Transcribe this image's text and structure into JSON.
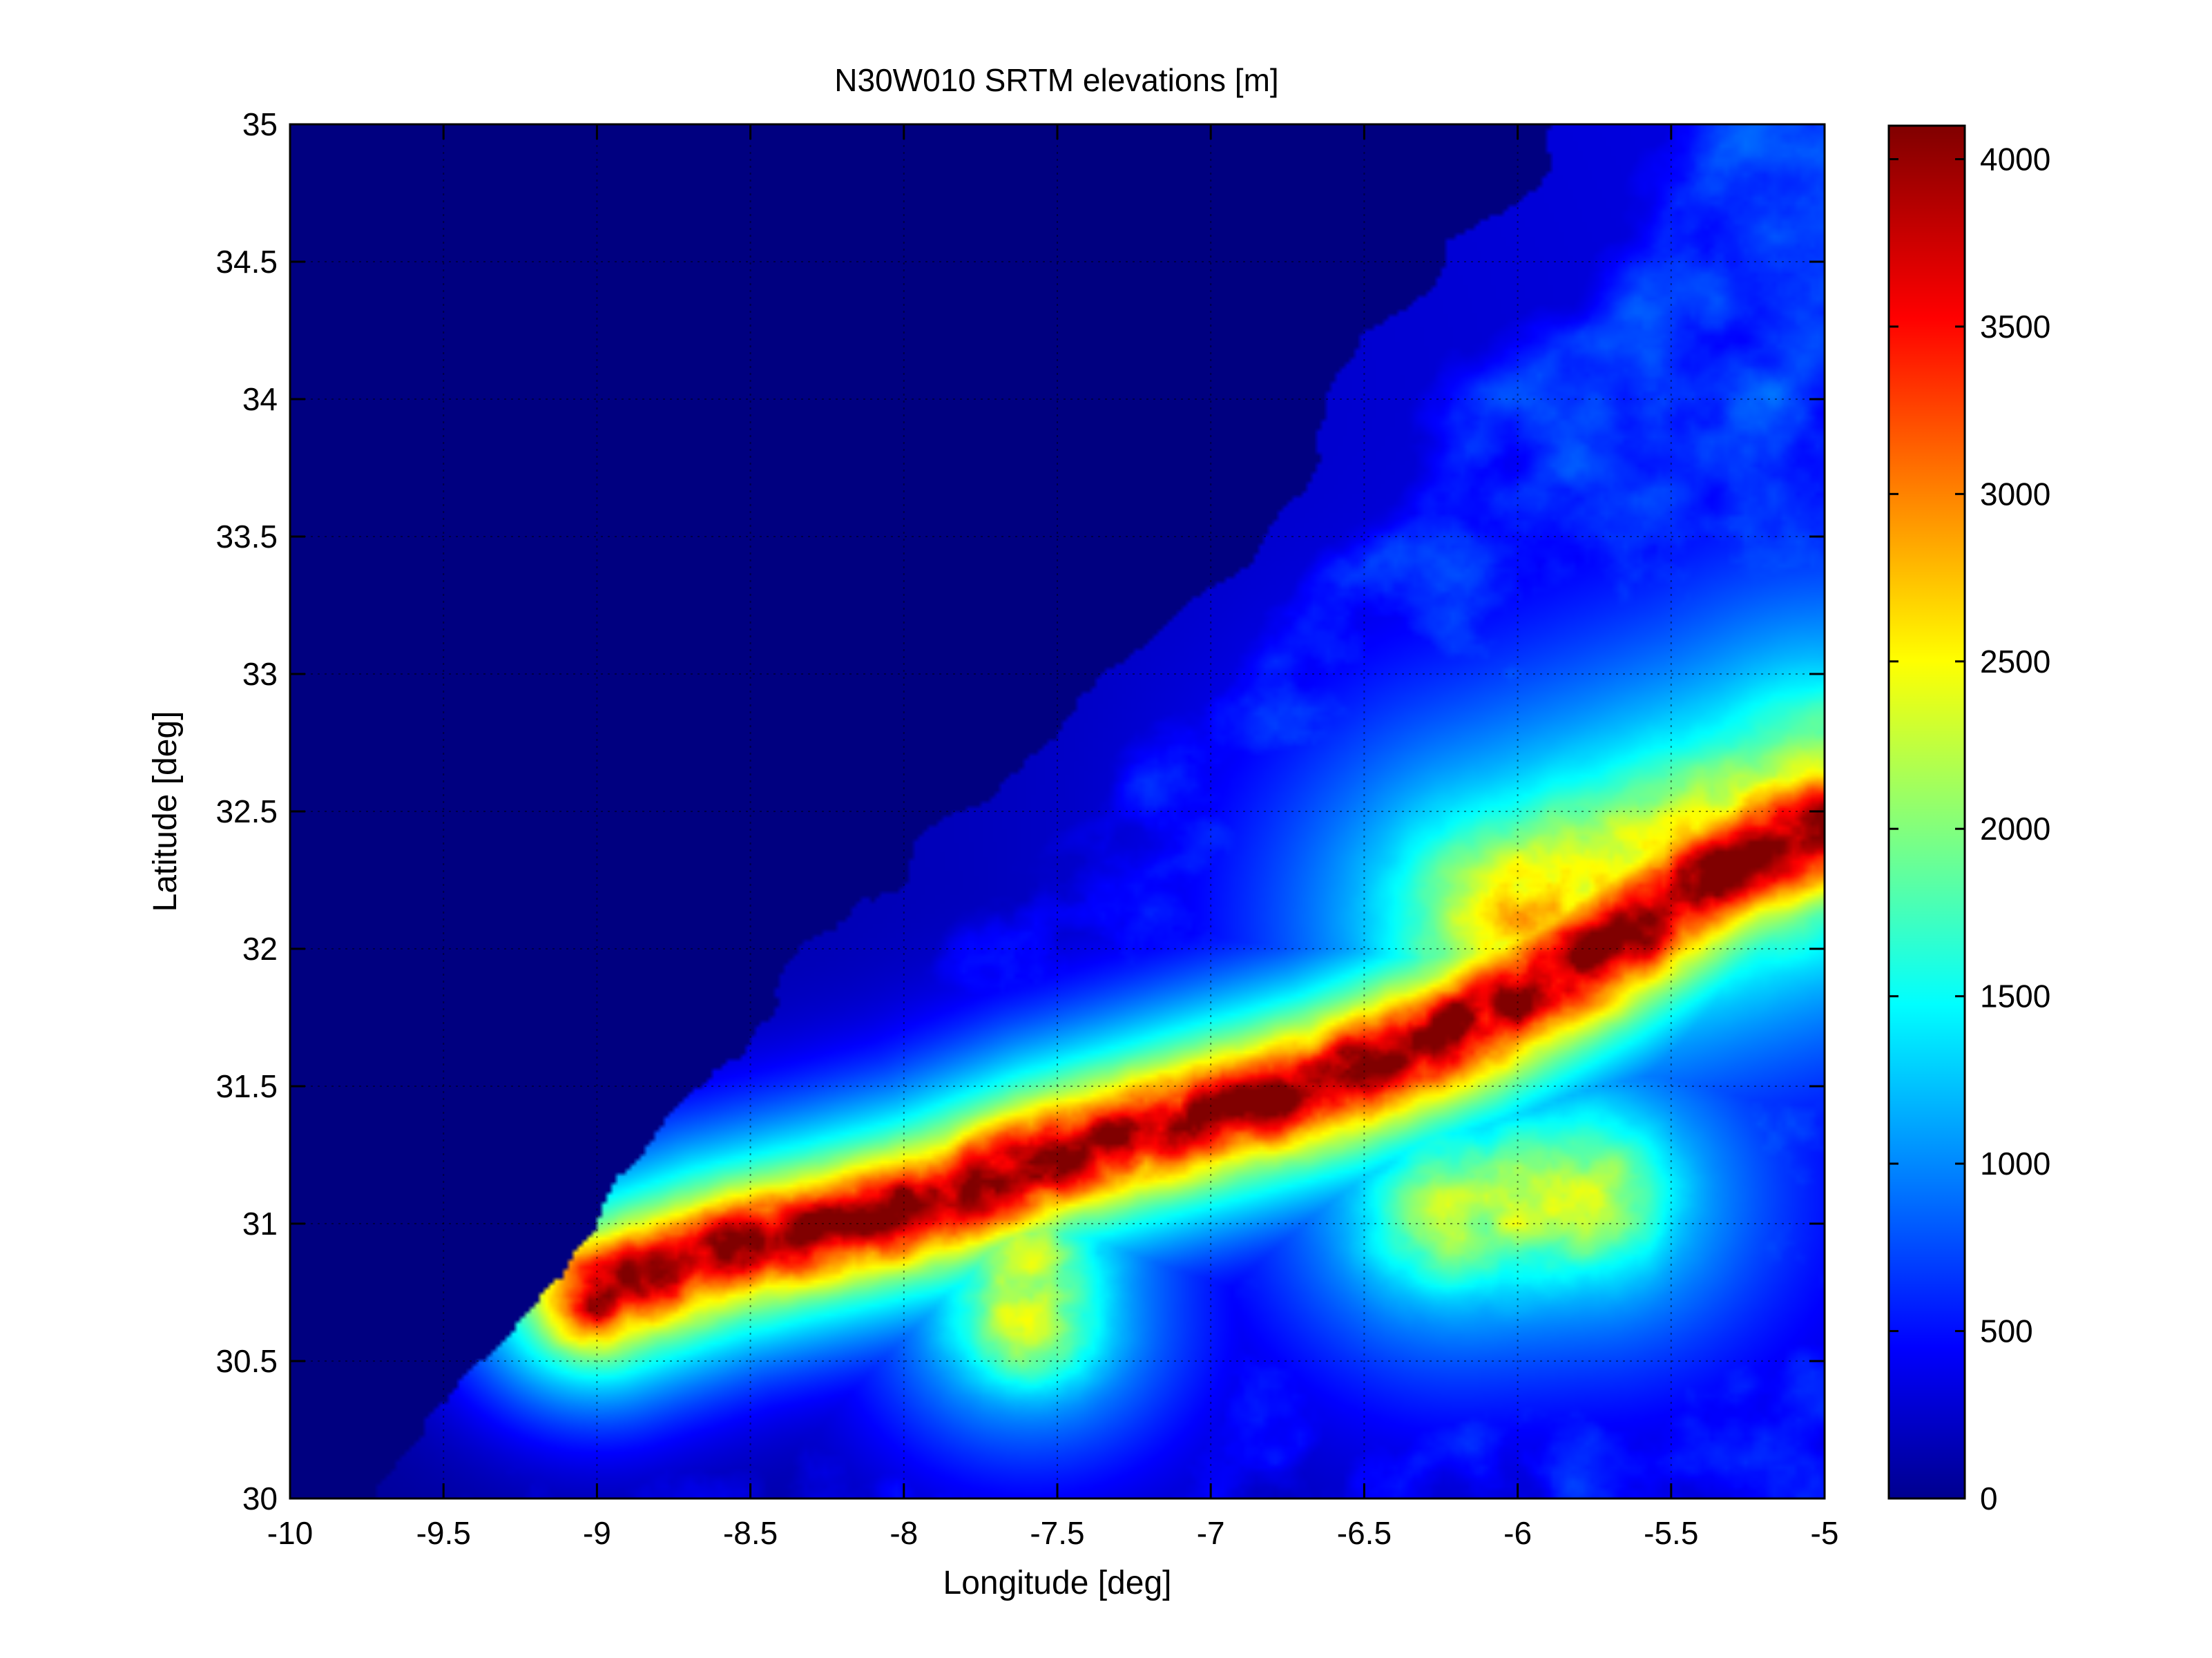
{
  "chart_data": {
    "type": "heatmap",
    "title": "N30W010 SRTM elevations [m]",
    "xlabel": "Longitude [deg]",
    "ylabel": "Latitude [deg]",
    "xlim": [
      -10,
      -5
    ],
    "ylim": [
      30,
      35
    ],
    "x_ticks": [
      -10,
      -9.5,
      -9,
      -8.5,
      -8,
      -7.5,
      -7,
      -6.5,
      -6,
      -5.5,
      -5
    ],
    "x_tick_labels": [
      "-10",
      "-9.5",
      "-9",
      "-8.5",
      "-8",
      "-7.5",
      "-7",
      "-6.5",
      "-6",
      "-5.5",
      "-5"
    ],
    "y_ticks": [
      30,
      30.5,
      31,
      31.5,
      32,
      32.5,
      33,
      33.5,
      34,
      34.5,
      35
    ],
    "y_tick_labels": [
      "30",
      "30.5",
      "31",
      "31.5",
      "32",
      "32.5",
      "33",
      "33.5",
      "34",
      "34.5",
      "35"
    ],
    "grid": true,
    "colormap": "jet",
    "colorbar": {
      "clim": [
        0,
        4100
      ],
      "ticks": [
        0,
        500,
        1000,
        1500,
        2000,
        2500,
        3000,
        3500,
        4000
      ],
      "tick_labels": [
        "0",
        "500",
        "1000",
        "1500",
        "2000",
        "2500",
        "3000",
        "3500",
        "4000"
      ]
    },
    "ridges": [
      {
        "amplitude": 3700,
        "spread_deg": 0.12,
        "path": [
          [
            -9.0,
            30.75
          ],
          [
            -8.6,
            30.9
          ],
          [
            -8.2,
            31.0
          ],
          [
            -7.9,
            31.08
          ],
          [
            -7.5,
            31.25
          ],
          [
            -7.0,
            31.4
          ],
          [
            -6.6,
            31.52
          ],
          [
            -6.2,
            31.7
          ],
          [
            -5.8,
            31.95
          ],
          [
            -5.4,
            32.25
          ],
          [
            -5.0,
            32.45
          ]
        ]
      },
      {
        "amplitude": 2400,
        "spread_deg": 0.22,
        "path": [
          [
            -6.0,
            32.1
          ],
          [
            -5.6,
            32.25
          ],
          [
            -5.2,
            32.4
          ],
          [
            -5.0,
            32.5
          ]
        ]
      },
      {
        "amplitude": 2100,
        "spread_deg": 0.15,
        "path": [
          [
            -7.6,
            30.85
          ],
          [
            -7.6,
            30.65
          ]
        ]
      },
      {
        "amplitude": 2000,
        "spread_deg": 0.18,
        "path": [
          [
            -6.2,
            31.05
          ],
          [
            -5.8,
            31.1
          ]
        ]
      }
    ]
  }
}
